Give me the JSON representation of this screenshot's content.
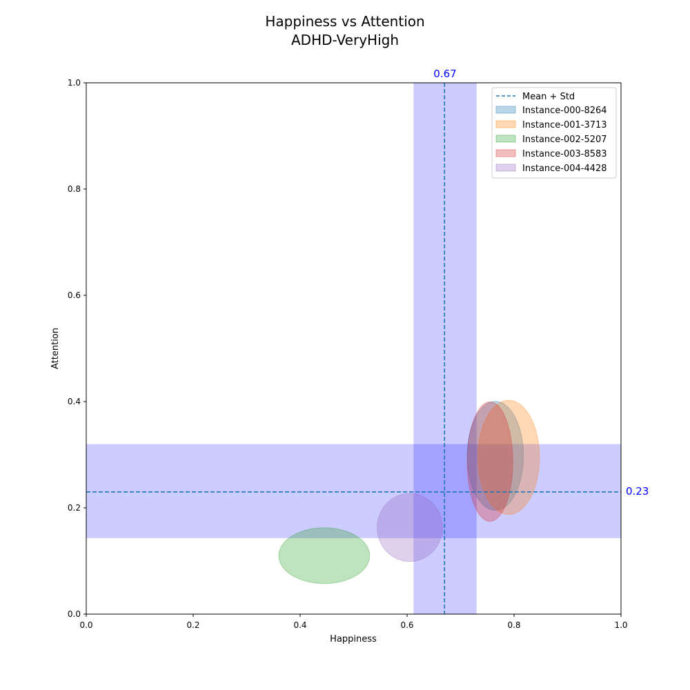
{
  "chart_data": {
    "type": "scatter",
    "title": "Happiness vs Attention",
    "subtitle": "ADHD-VeryHigh",
    "xlabel": "Happiness",
    "ylabel": "Attention",
    "xlim": [
      0.0,
      1.0
    ],
    "ylim": [
      0.0,
      1.0
    ],
    "x_ticks": [
      "0.0",
      "0.2",
      "0.4",
      "0.6",
      "0.8",
      "1.0"
    ],
    "y_ticks": [
      "0.0",
      "0.2",
      "0.4",
      "0.6",
      "0.8",
      "1.0"
    ],
    "grid": false,
    "legend_position": "top-right",
    "mean_line_label": "Mean + Std",
    "mean": {
      "x": 0.67,
      "y": 0.23
    },
    "std_band": {
      "x": [
        0.612,
        0.73
      ],
      "y": [
        0.143,
        0.32
      ]
    },
    "mean_x_label": "0.67",
    "mean_y_label": "0.23",
    "mean_line_color": "#1f77b4",
    "band_color": "#0000ff",
    "series": [
      {
        "name": "Instance-000-8264",
        "center": [
          0.765,
          0.298
        ],
        "width": 0.105,
        "height": 0.205,
        "color": "#1f77b4"
      },
      {
        "name": "Instance-001-3713",
        "center": [
          0.79,
          0.295
        ],
        "width": 0.115,
        "height": 0.215,
        "color": "#ff7f0e"
      },
      {
        "name": "Instance-002-5207",
        "center": [
          0.445,
          0.11
        ],
        "width": 0.17,
        "height": 0.105,
        "color": "#2ca02c"
      },
      {
        "name": "Instance-003-8583",
        "center": [
          0.755,
          0.287
        ],
        "width": 0.085,
        "height": 0.225,
        "color": "#d62728"
      },
      {
        "name": "Instance-004-4428",
        "center": [
          0.605,
          0.163
        ],
        "width": 0.122,
        "height": 0.128,
        "color": "#9467bd"
      }
    ]
  }
}
